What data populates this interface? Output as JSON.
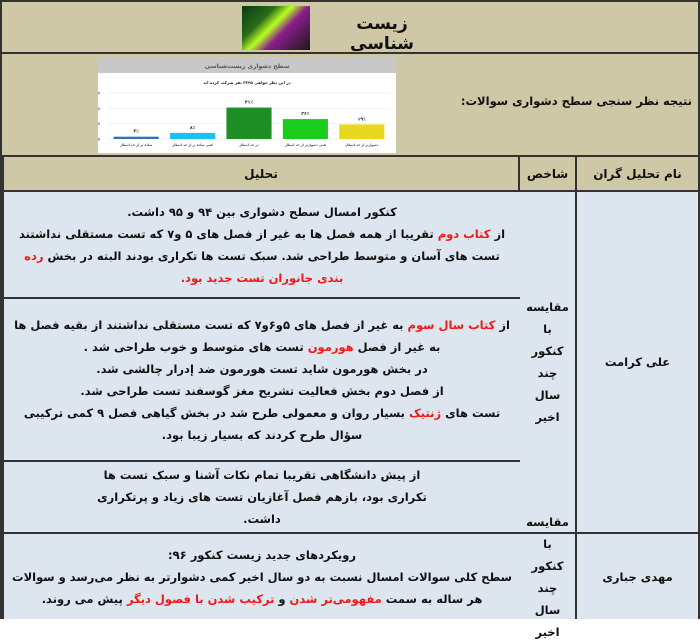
{
  "header": {
    "title": "زیست شناسی",
    "logo": "dna-image"
  },
  "intro": {
    "caption": "نتیجه نظر سنجی سطح دشواری سوالات:"
  },
  "chart_data": {
    "type": "bar",
    "title": "سطح دشواری زیست‌شناسی",
    "subtitle": "در این نظر خواهی ۳۳۴۵ نفر شرکت کرده اند",
    "categories": [
      "ساده تر از حد انتظار",
      "کمی ساده تر از حد انتظار",
      "در حد انتظار",
      "کمی دشوارتر از حد انتظار",
      "دشوارتر از حد انتظار"
    ],
    "values": [
      3,
      8,
      41,
      26,
      19
    ],
    "labels": [
      "۳٪",
      "۸٪",
      "۴۱٪",
      "۲۶٪",
      "۱۹٪"
    ],
    "colors": [
      "#2e75b6",
      "#19c3f0",
      "#1e8f24",
      "#1ccc1c",
      "#e8d820"
    ],
    "yticks": [
      0,
      20,
      40,
      60
    ],
    "ylim": [
      0,
      60
    ],
    "grid": true
  },
  "table": {
    "headers": {
      "name": "نام تحلیل گران",
      "index": "شاخص",
      "analysis": "تحلیل"
    },
    "rows": [
      {
        "name": "علی کرامت",
        "index": "مقایسه با کنکور چند سال اخیر",
        "p1": {
          "l1": "کنکور امسال سطح دشواری بین ۹۴ و ۹۵ داشت.",
          "a": "از ",
          "b": "کتاب دوم",
          "c": " تقریبا از همه فصل ها به غیر از فصل های ۵ و۷ که تست مستقلی نداشتند تست های آسان و متوسط طراحی شد. سبک تست ها تکراری بودند البته در بخش ",
          "d": "رده بندی جانوران تست جدید بود."
        },
        "p2": {
          "a": "از ",
          "b": "کتاب سال سوم",
          "c": " به غیر از فصل های ۵و۶و۷ که تست مستقلی نداشتند از بقیه فصل ها به غیر از فصل ",
          "d": "هورمون",
          "e": " تست های متوسط و خوب طراحی شد .",
          "l2": "در بخش هورمون شاید تست هورمون ضد إدرار چالشی شد.",
          "l3": "از فصل دوم بخش فعالیت تشریح مغز گوسفند تست طراحی شد.",
          "f": "تست های ",
          "g": "ژنتیک",
          "h": " بسیار روان و معمولی طرح شد در بخش گیاهی فصل ۹ کمی ترکیبی سؤال طرح کردند که بسیار زیبا بود."
        },
        "p3": {
          "l1": "از پیش دانشگاهی تقریبا تمام نکات آشنا و سبک تست ها تکراری بود، بازهم فصل آغازیان تست های زیاد و پرتکراری داشت."
        }
      },
      {
        "name": "مهدی جباری",
        "index": "مقایسه با کنکور چند سال اخیر",
        "p1": {
          "l1": "رویکردهای جدید زیست کنکور ۹۶:",
          "a": "سطح کلی سوالات امسال نسبت به دو سال اخیر کمی دشوارتر به نظر می‌رسد و سوالات هر ساله به سمت ",
          "b": "مفهومی‌تر شدن",
          "c": " و ",
          "d": "ترکیب شدن با فصول دیگر",
          "e": " پیش می روند."
        }
      }
    ]
  }
}
